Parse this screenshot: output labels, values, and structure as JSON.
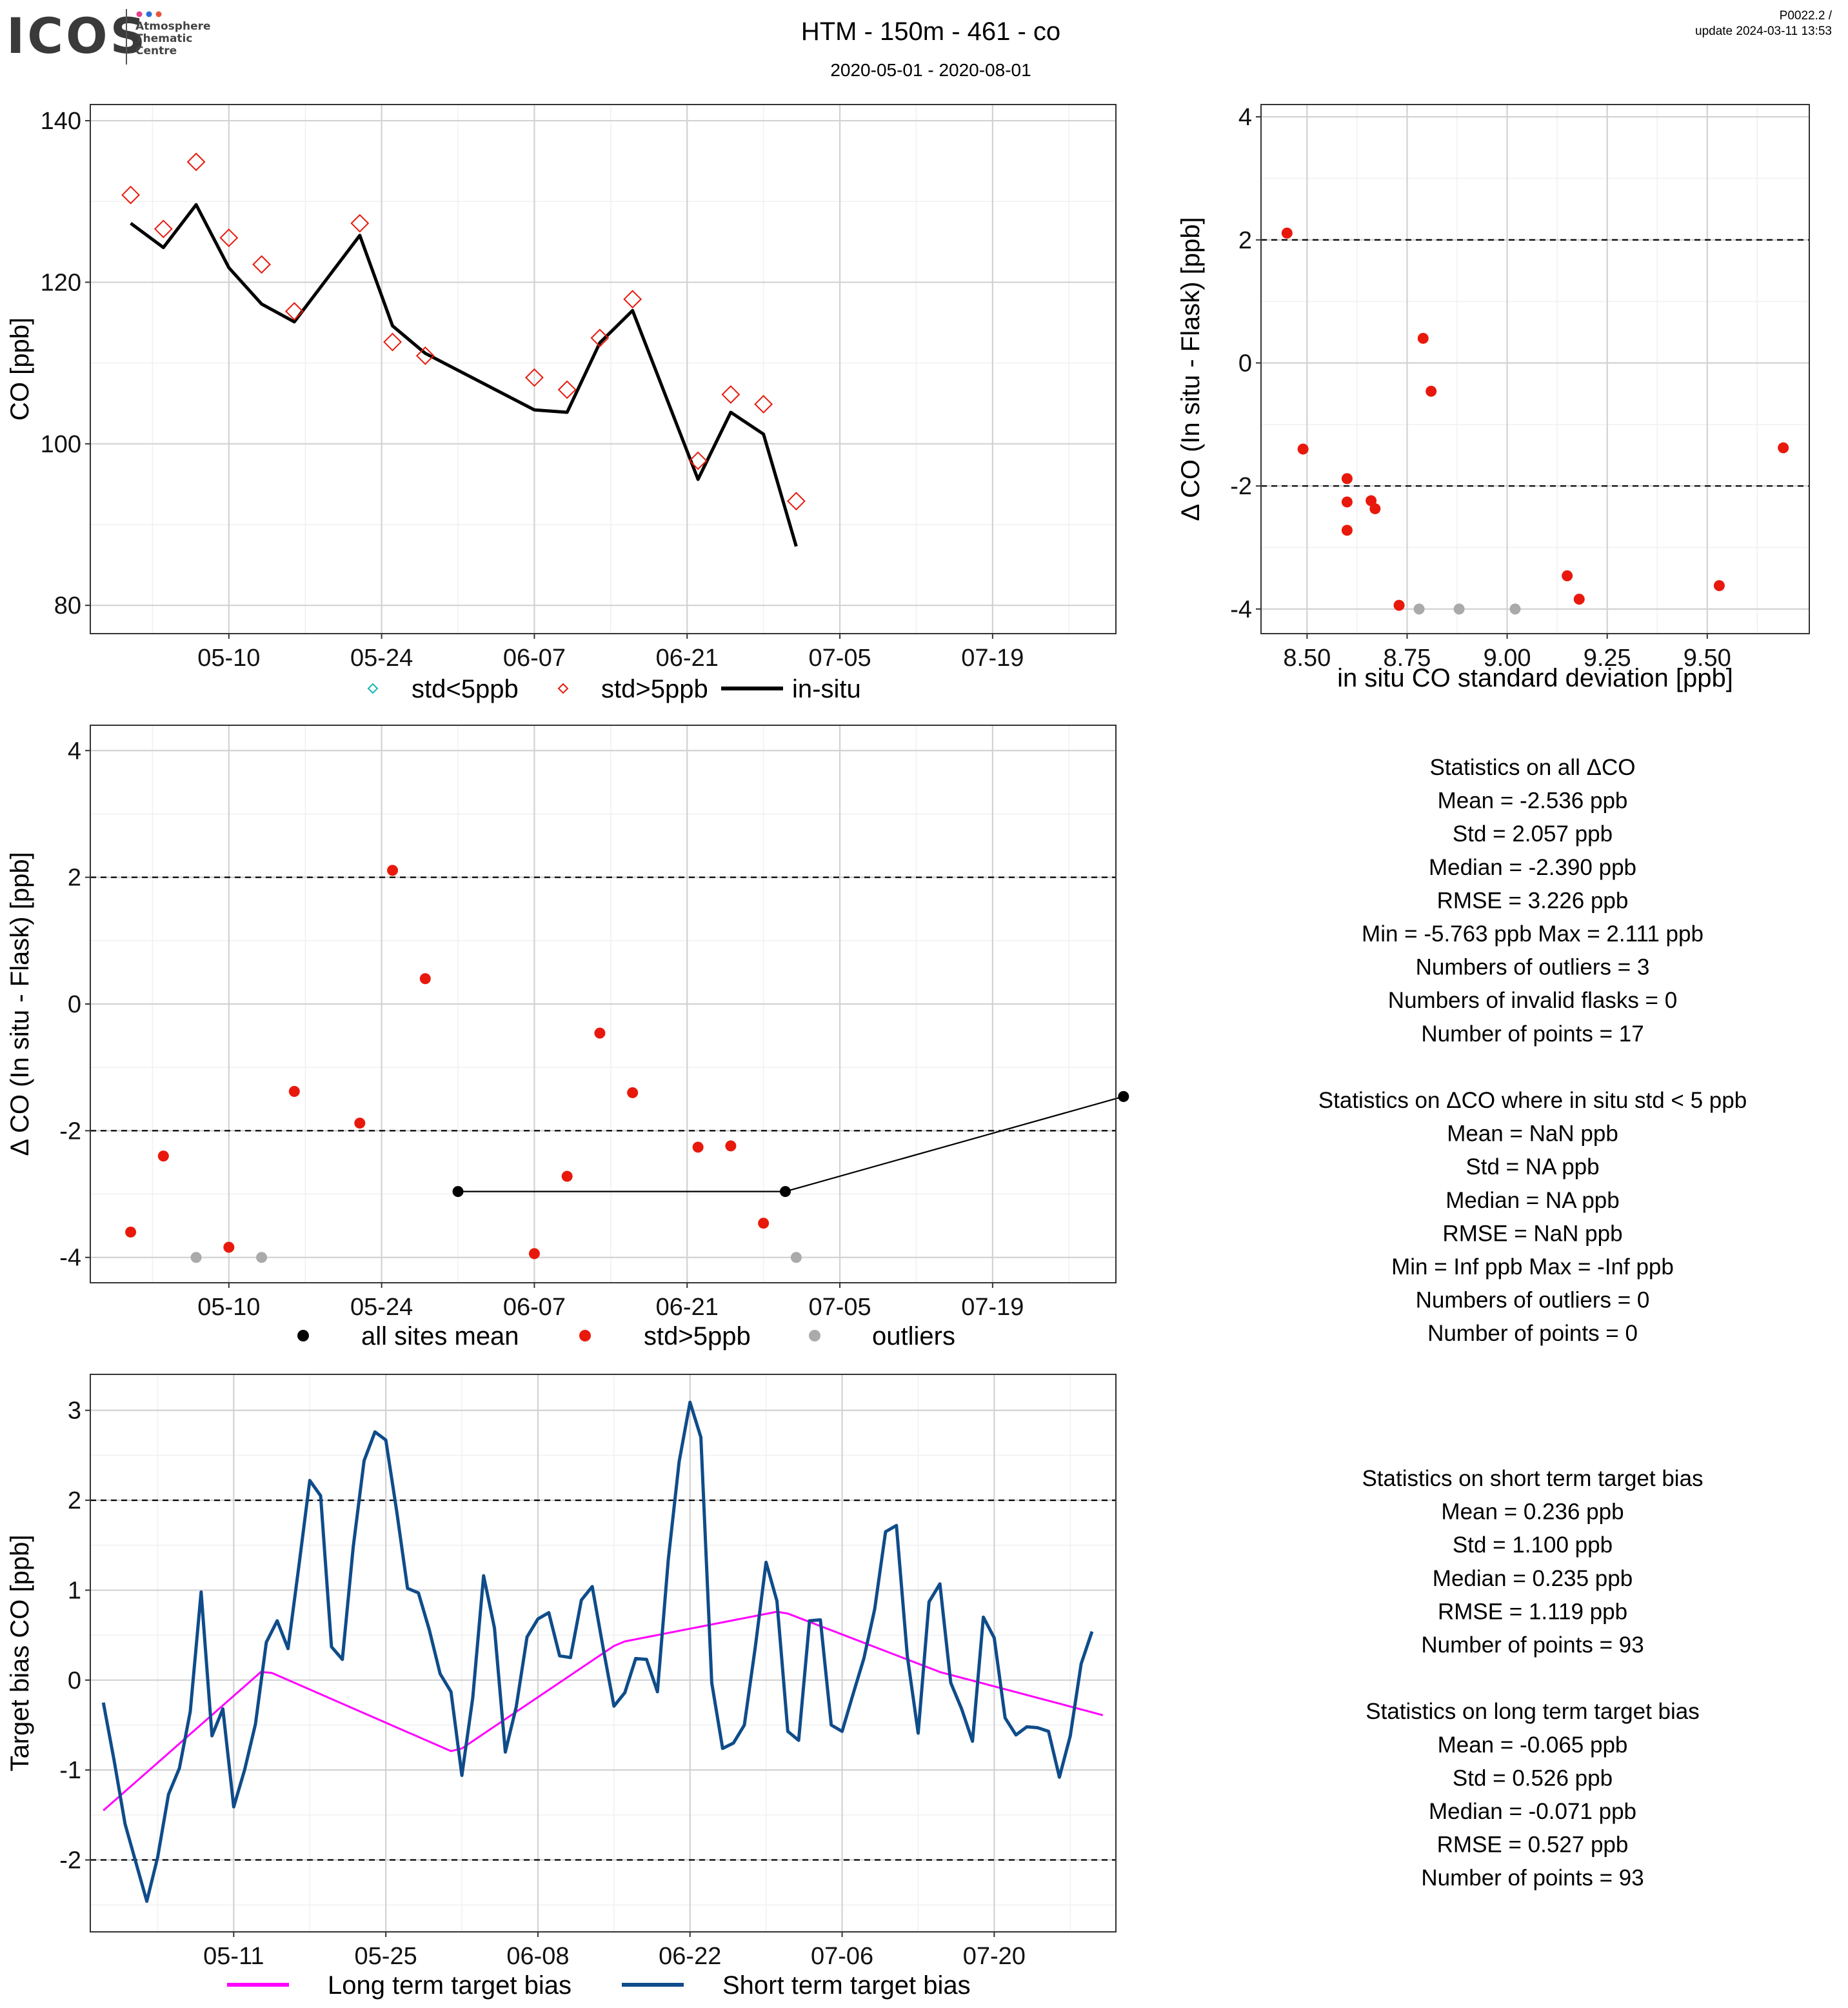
{
  "header": {
    "logo_text": "ICOS",
    "logo_sub": [
      "Atmosphere",
      "Thematic",
      "Centre"
    ],
    "logo_dot_colors": [
      "#e83e8c",
      "#2b6fd6",
      "#e8543e"
    ],
    "title": "HTM - 150m - 461 - co",
    "subtitle": "2020-05-01 - 2020-08-01",
    "version": "P0022.2 /",
    "update": "update  2024-03-11 13:53"
  },
  "chart_data": [
    {
      "id": "co-timeseries",
      "type": "line",
      "title": "",
      "xlabel": "",
      "ylabel": "CO [ppb]",
      "x_ticks": [
        "05-10",
        "05-24",
        "06-07",
        "06-21",
        "07-05",
        "07-19"
      ],
      "x_tick_day": [
        10,
        24,
        38,
        52,
        66,
        80
      ],
      "xlim_day": [
        -2.7,
        91.3
      ],
      "y_ticks": [
        80,
        100,
        120,
        140
      ],
      "ylim": [
        76.5,
        142
      ],
      "grid": true,
      "series": [
        {
          "name": "in-situ",
          "kind": "line",
          "color": "#000000",
          "points": [
            [
              1,
              127.3
            ],
            [
              4,
              124.3
            ],
            [
              7,
              129.6
            ],
            [
              10,
              121.8
            ],
            [
              13,
              117.3
            ],
            [
              16,
              115.1
            ],
            [
              22,
              125.8
            ],
            [
              25,
              114.6
            ],
            [
              28,
              111.2
            ],
            [
              38,
              104.2
            ],
            [
              41,
              103.9
            ],
            [
              44,
              112.5
            ],
            [
              47,
              116.5
            ],
            [
              53,
              95.6
            ],
            [
              56,
              103.9
            ],
            [
              59,
              101.2
            ],
            [
              62,
              87.3
            ]
          ]
        },
        {
          "name": "std>5ppb",
          "kind": "diamond",
          "color": "#e8190c",
          "points": [
            [
              1,
              130.8
            ],
            [
              4,
              126.6
            ],
            [
              7,
              134.9
            ],
            [
              10,
              125.5
            ],
            [
              13,
              122.2
            ],
            [
              16,
              116.4
            ],
            [
              22,
              127.3
            ],
            [
              25,
              112.6
            ],
            [
              28,
              110.9
            ],
            [
              38,
              108.2
            ],
            [
              41,
              106.7
            ],
            [
              44,
              113.1
            ],
            [
              47,
              117.9
            ],
            [
              53,
              97.9
            ],
            [
              56,
              106.1
            ],
            [
              59,
              104.9
            ],
            [
              62,
              92.9
            ]
          ]
        },
        {
          "name": "std<5ppb",
          "kind": "diamond",
          "color": "#16b5b5",
          "points": []
        }
      ],
      "legend": {
        "position": "bottom",
        "entries": [
          "std<5ppb",
          "std>5ppb",
          "in-situ"
        ]
      }
    },
    {
      "id": "delta-vs-std",
      "type": "scatter",
      "title": "",
      "xlabel": "in situ CO standard deviation [ppb]",
      "ylabel": "Δ CO (In situ - Flask) [ppb]",
      "x_ticks": [
        8.5,
        8.75,
        9.0,
        9.25,
        9.5
      ],
      "x_tick_labels": [
        "8.50",
        "8.75",
        "9.00",
        "9.25",
        "9.50"
      ],
      "xlim": [
        8.385,
        9.755
      ],
      "y_ticks": [
        -4,
        -2,
        0,
        2,
        4
      ],
      "ylim": [
        -4.4,
        4.2
      ],
      "hlines": [
        -2,
        2
      ],
      "grid": true,
      "series": [
        {
          "name": "std>5ppb",
          "color": "#e8190c",
          "points": [
            [
              8.45,
              2.11
            ],
            [
              8.49,
              -1.4
            ],
            [
              8.6,
              -1.88
            ],
            [
              8.6,
              -2.26
            ],
            [
              8.6,
              -2.72
            ],
            [
              8.66,
              -2.24
            ],
            [
              8.67,
              -2.37
            ],
            [
              8.73,
              -3.94
            ],
            [
              8.79,
              0.4
            ],
            [
              8.81,
              -0.46
            ],
            [
              9.15,
              -3.46
            ],
            [
              9.18,
              -3.84
            ],
            [
              9.53,
              -3.62
            ],
            [
              9.69,
              -1.38
            ]
          ]
        },
        {
          "name": "outliers",
          "color": "#aaaaaa",
          "points": [
            [
              8.78,
              -4.0
            ],
            [
              8.88,
              -4.0
            ],
            [
              9.02,
              -4.0
            ]
          ]
        }
      ]
    },
    {
      "id": "delta-timeseries",
      "type": "scatter",
      "title": "",
      "xlabel": "",
      "ylabel": "Δ CO (In situ - Flask) [ppb]",
      "x_ticks": [
        "05-10",
        "05-24",
        "06-07",
        "06-21",
        "07-05",
        "07-19"
      ],
      "x_tick_day": [
        10,
        24,
        38,
        52,
        66,
        80
      ],
      "xlim_day": [
        -2.7,
        91.3
      ],
      "y_ticks": [
        -4,
        -2,
        0,
        2,
        4
      ],
      "ylim": [
        -4.4,
        4.4
      ],
      "hlines": [
        -2,
        2
      ],
      "grid": true,
      "series": [
        {
          "name": "all sites mean",
          "kind": "line-points",
          "color": "#000000",
          "points": [
            [
              31,
              -2.96
            ],
            [
              61,
              -2.96
            ],
            [
              92,
              -1.46
            ]
          ]
        },
        {
          "name": "std>5ppb",
          "color": "#e8190c",
          "points": [
            [
              1,
              -3.6
            ],
            [
              4,
              -2.4
            ],
            [
              10,
              -3.84
            ],
            [
              16,
              -1.38
            ],
            [
              22,
              -1.88
            ],
            [
              25,
              2.11
            ],
            [
              28,
              0.4
            ],
            [
              38,
              -3.94
            ],
            [
              41,
              -2.72
            ],
            [
              44,
              -0.46
            ],
            [
              47,
              -1.4
            ],
            [
              53,
              -2.26
            ],
            [
              56,
              -2.24
            ],
            [
              59,
              -3.46
            ]
          ]
        },
        {
          "name": "outliers",
          "color": "#aaaaaa",
          "points": [
            [
              7,
              -4.0
            ],
            [
              13,
              -4.0
            ],
            [
              62,
              -4.0
            ]
          ]
        }
      ],
      "legend": {
        "position": "bottom",
        "entries": [
          "all sites mean",
          "std>5ppb",
          "outliers"
        ]
      }
    },
    {
      "id": "target-bias",
      "type": "line",
      "title": "",
      "xlabel": "",
      "ylabel": "Target bias CO [ppb]",
      "x_ticks": [
        "05-11",
        "05-25",
        "06-08",
        "06-22",
        "07-06",
        "07-20"
      ],
      "x_tick_day": [
        11,
        25,
        39,
        53,
        67,
        81
      ],
      "xlim_day": [
        -2.2,
        92.2
      ],
      "y_ticks": [
        -2,
        -1,
        0,
        1,
        2,
        3
      ],
      "ylim": [
        -2.8,
        3.4
      ],
      "hlines": [
        -2,
        2
      ],
      "grid": true,
      "series": [
        {
          "name": "Long term target bias",
          "color": "#ff00ff",
          "points": [
            [
              -1,
              -1.45
            ],
            [
              13.5,
              0.09
            ],
            [
              14.5,
              0.08
            ],
            [
              31,
              -0.79
            ],
            [
              32,
              -0.76
            ],
            [
              46,
              0.38
            ],
            [
              47,
              0.43
            ],
            [
              61,
              0.76
            ],
            [
              62,
              0.74
            ],
            [
              76,
              0.09
            ],
            [
              91,
              -0.39
            ]
          ]
        },
        {
          "name": "Short term target bias",
          "color": "#0f4c8a",
          "points": [
            [
              -1,
              -0.25
            ],
            [
              0,
              -0.9
            ],
            [
              1,
              -1.6
            ],
            [
              3,
              -2.46
            ],
            [
              4,
              -1.97
            ],
            [
              5,
              -1.27
            ],
            [
              6,
              -0.98
            ],
            [
              7,
              -0.35
            ],
            [
              8,
              0.98
            ],
            [
              9,
              -0.62
            ],
            [
              10,
              -0.32
            ],
            [
              11,
              -1.41
            ],
            [
              12,
              -1.0
            ],
            [
              13,
              -0.49
            ],
            [
              14,
              0.42
            ],
            [
              15,
              0.66
            ],
            [
              16,
              0.35
            ],
            [
              17,
              1.27
            ],
            [
              18,
              2.22
            ],
            [
              19,
              2.05
            ],
            [
              20,
              0.37
            ],
            [
              21,
              0.23
            ],
            [
              22,
              1.48
            ],
            [
              23,
              2.44
            ],
            [
              24,
              2.76
            ],
            [
              25,
              2.67
            ],
            [
              26,
              1.88
            ],
            [
              27,
              1.02
            ],
            [
              28,
              0.97
            ],
            [
              29,
              0.56
            ],
            [
              30,
              0.07
            ],
            [
              31,
              -0.13
            ],
            [
              32,
              -1.06
            ],
            [
              33,
              -0.2
            ],
            [
              34,
              1.16
            ],
            [
              35,
              0.58
            ],
            [
              36,
              -0.8
            ],
            [
              37,
              -0.3
            ],
            [
              38,
              0.48
            ],
            [
              39,
              0.68
            ],
            [
              40,
              0.75
            ],
            [
              41,
              0.27
            ],
            [
              42,
              0.25
            ],
            [
              43,
              0.89
            ],
            [
              44,
              1.04
            ],
            [
              45,
              0.36
            ],
            [
              46,
              -0.29
            ],
            [
              47,
              -0.14
            ],
            [
              48,
              0.24
            ],
            [
              49,
              0.23
            ],
            [
              50,
              -0.13
            ],
            [
              51,
              1.34
            ],
            [
              52,
              2.43
            ],
            [
              53,
              3.09
            ],
            [
              54,
              2.7
            ],
            [
              55,
              -0.03
            ],
            [
              56,
              -0.76
            ],
            [
              57,
              -0.7
            ],
            [
              58,
              -0.5
            ],
            [
              59,
              0.36
            ],
            [
              60,
              1.31
            ],
            [
              61,
              0.88
            ],
            [
              62,
              -0.57
            ],
            [
              63,
              -0.67
            ],
            [
              64,
              0.66
            ],
            [
              65,
              0.67
            ],
            [
              66,
              -0.5
            ],
            [
              67,
              -0.57
            ],
            [
              68,
              -0.16
            ],
            [
              69,
              0.24
            ],
            [
              70,
              0.79
            ],
            [
              71,
              1.65
            ],
            [
              72,
              1.72
            ],
            [
              73,
              0.27
            ],
            [
              74,
              -0.59
            ],
            [
              75,
              0.87
            ],
            [
              76,
              1.07
            ],
            [
              77,
              -0.03
            ],
            [
              78,
              -0.32
            ],
            [
              79,
              -0.68
            ],
            [
              80,
              0.7
            ],
            [
              81,
              0.47
            ],
            [
              82,
              -0.42
            ],
            [
              83,
              -0.61
            ],
            [
              84,
              -0.52
            ],
            [
              85,
              -0.53
            ],
            [
              86,
              -0.57
            ],
            [
              87,
              -1.08
            ],
            [
              88,
              -0.62
            ],
            [
              89,
              0.18
            ],
            [
              90,
              0.54
            ]
          ]
        }
      ],
      "legend": {
        "position": "bottom",
        "entries": [
          "Long term target bias",
          "Short term target bias"
        ]
      }
    }
  ],
  "stats": {
    "block1": [
      "Statistics on all ΔCO",
      "Mean =  -2.536 ppb",
      "Std =  2.057 ppb",
      "Median =  -2.390 ppb",
      "RMSE =  3.226 ppb",
      "Min =  -5.763 ppb Max =  2.111 ppb",
      "Numbers of outliers =  3",
      "Numbers of invalid flasks =  0",
      "Number of points =  17",
      "",
      "Statistics on ΔCO where in situ std < 5 ppb",
      "Mean =  NaN ppb",
      "Std =  NA ppb",
      "Median =  NA ppb",
      "RMSE =  NaN ppb",
      "Min =  Inf ppb Max =  -Inf ppb",
      "Numbers of outliers =  0",
      "Number of points =  0"
    ],
    "block2": [
      "Statistics on short term target bias",
      "Mean =  0.236 ppb",
      "Std =  1.100 ppb",
      "Median =  0.235 ppb",
      "RMSE =  1.119 ppb",
      "Number of points =  93",
      "",
      "Statistics on long term target bias",
      "Mean =  -0.065 ppb",
      "Std =  0.526 ppb",
      "Median =  -0.071 ppb",
      "RMSE =  0.527 ppb",
      "Number of points =  93"
    ]
  }
}
